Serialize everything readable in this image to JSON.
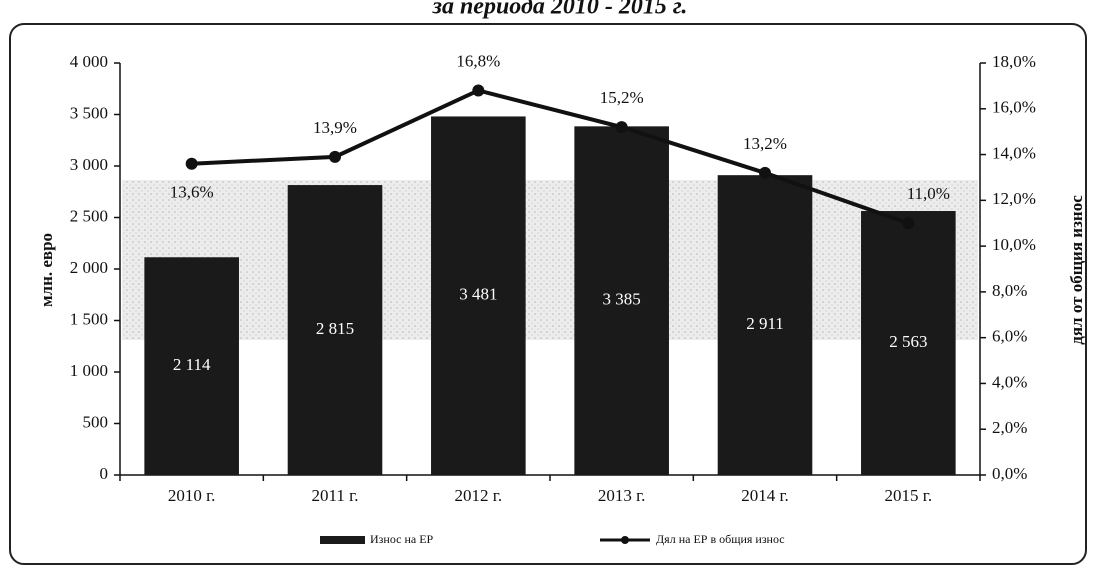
{
  "chart_data": {
    "type": "bar_line",
    "title": "за периода 2010 - 2015 г.",
    "y_label": "млн. евро",
    "y2_label": "дял от общия износ",
    "categories": [
      "2010 г.",
      "2011 г.",
      "2012 г.",
      "2013 г.",
      "2014 г.",
      "2015 г."
    ],
    "series": [
      {
        "name": "Износ на ЕР",
        "color": "#1a1a1a",
        "type": "bar",
        "values": [
          2114,
          2815,
          3481,
          3385,
          2911,
          2563
        ],
        "value_labels": [
          "2 114",
          "2 815",
          "3 481",
          "3 385",
          "2 911",
          "2 563"
        ]
      },
      {
        "name": "Дял на ЕР в общия износ",
        "color": "#111111",
        "type": "line",
        "axis": "y2",
        "values": [
          13.6,
          13.9,
          16.8,
          15.2,
          13.2,
          11.0
        ],
        "value_labels": [
          "13,6%",
          "13,9%",
          "16,8%",
          "15,2%",
          "13,2%",
          "11,0%"
        ]
      }
    ],
    "ylim": [
      0,
      4000
    ],
    "yticks": [
      0,
      500,
      {
        "value": 1000,
        "label": "1 000"
      },
      {
        "value": 1500,
        "label": "1 500"
      },
      {
        "value": 2000,
        "label": "2 000"
      },
      {
        "value": 2500,
        "label": "2 500"
      },
      {
        "value": 3000,
        "label": "3 000"
      },
      {
        "value": 3500,
        "label": "3 500"
      },
      {
        "value": 4000,
        "label": "4 000"
      }
    ],
    "y2lim": [
      0,
      18
    ],
    "y2ticks": [
      {
        "value": 0,
        "label": "0,0%"
      },
      {
        "value": 2,
        "label": "2,0%"
      },
      {
        "value": 4,
        "label": "4,0%"
      },
      {
        "value": 6,
        "label": "6,0%"
      },
      {
        "value": 8,
        "label": "8,0%"
      },
      {
        "value": 10,
        "label": "10,0%"
      },
      {
        "value": 12,
        "label": "12,0%"
      },
      {
        "value": 14,
        "label": "14,0%"
      },
      {
        "value": 16,
        "label": "16,0%"
      },
      {
        "value": 18,
        "label": "18,0%"
      }
    ],
    "legend": "bottom"
  }
}
